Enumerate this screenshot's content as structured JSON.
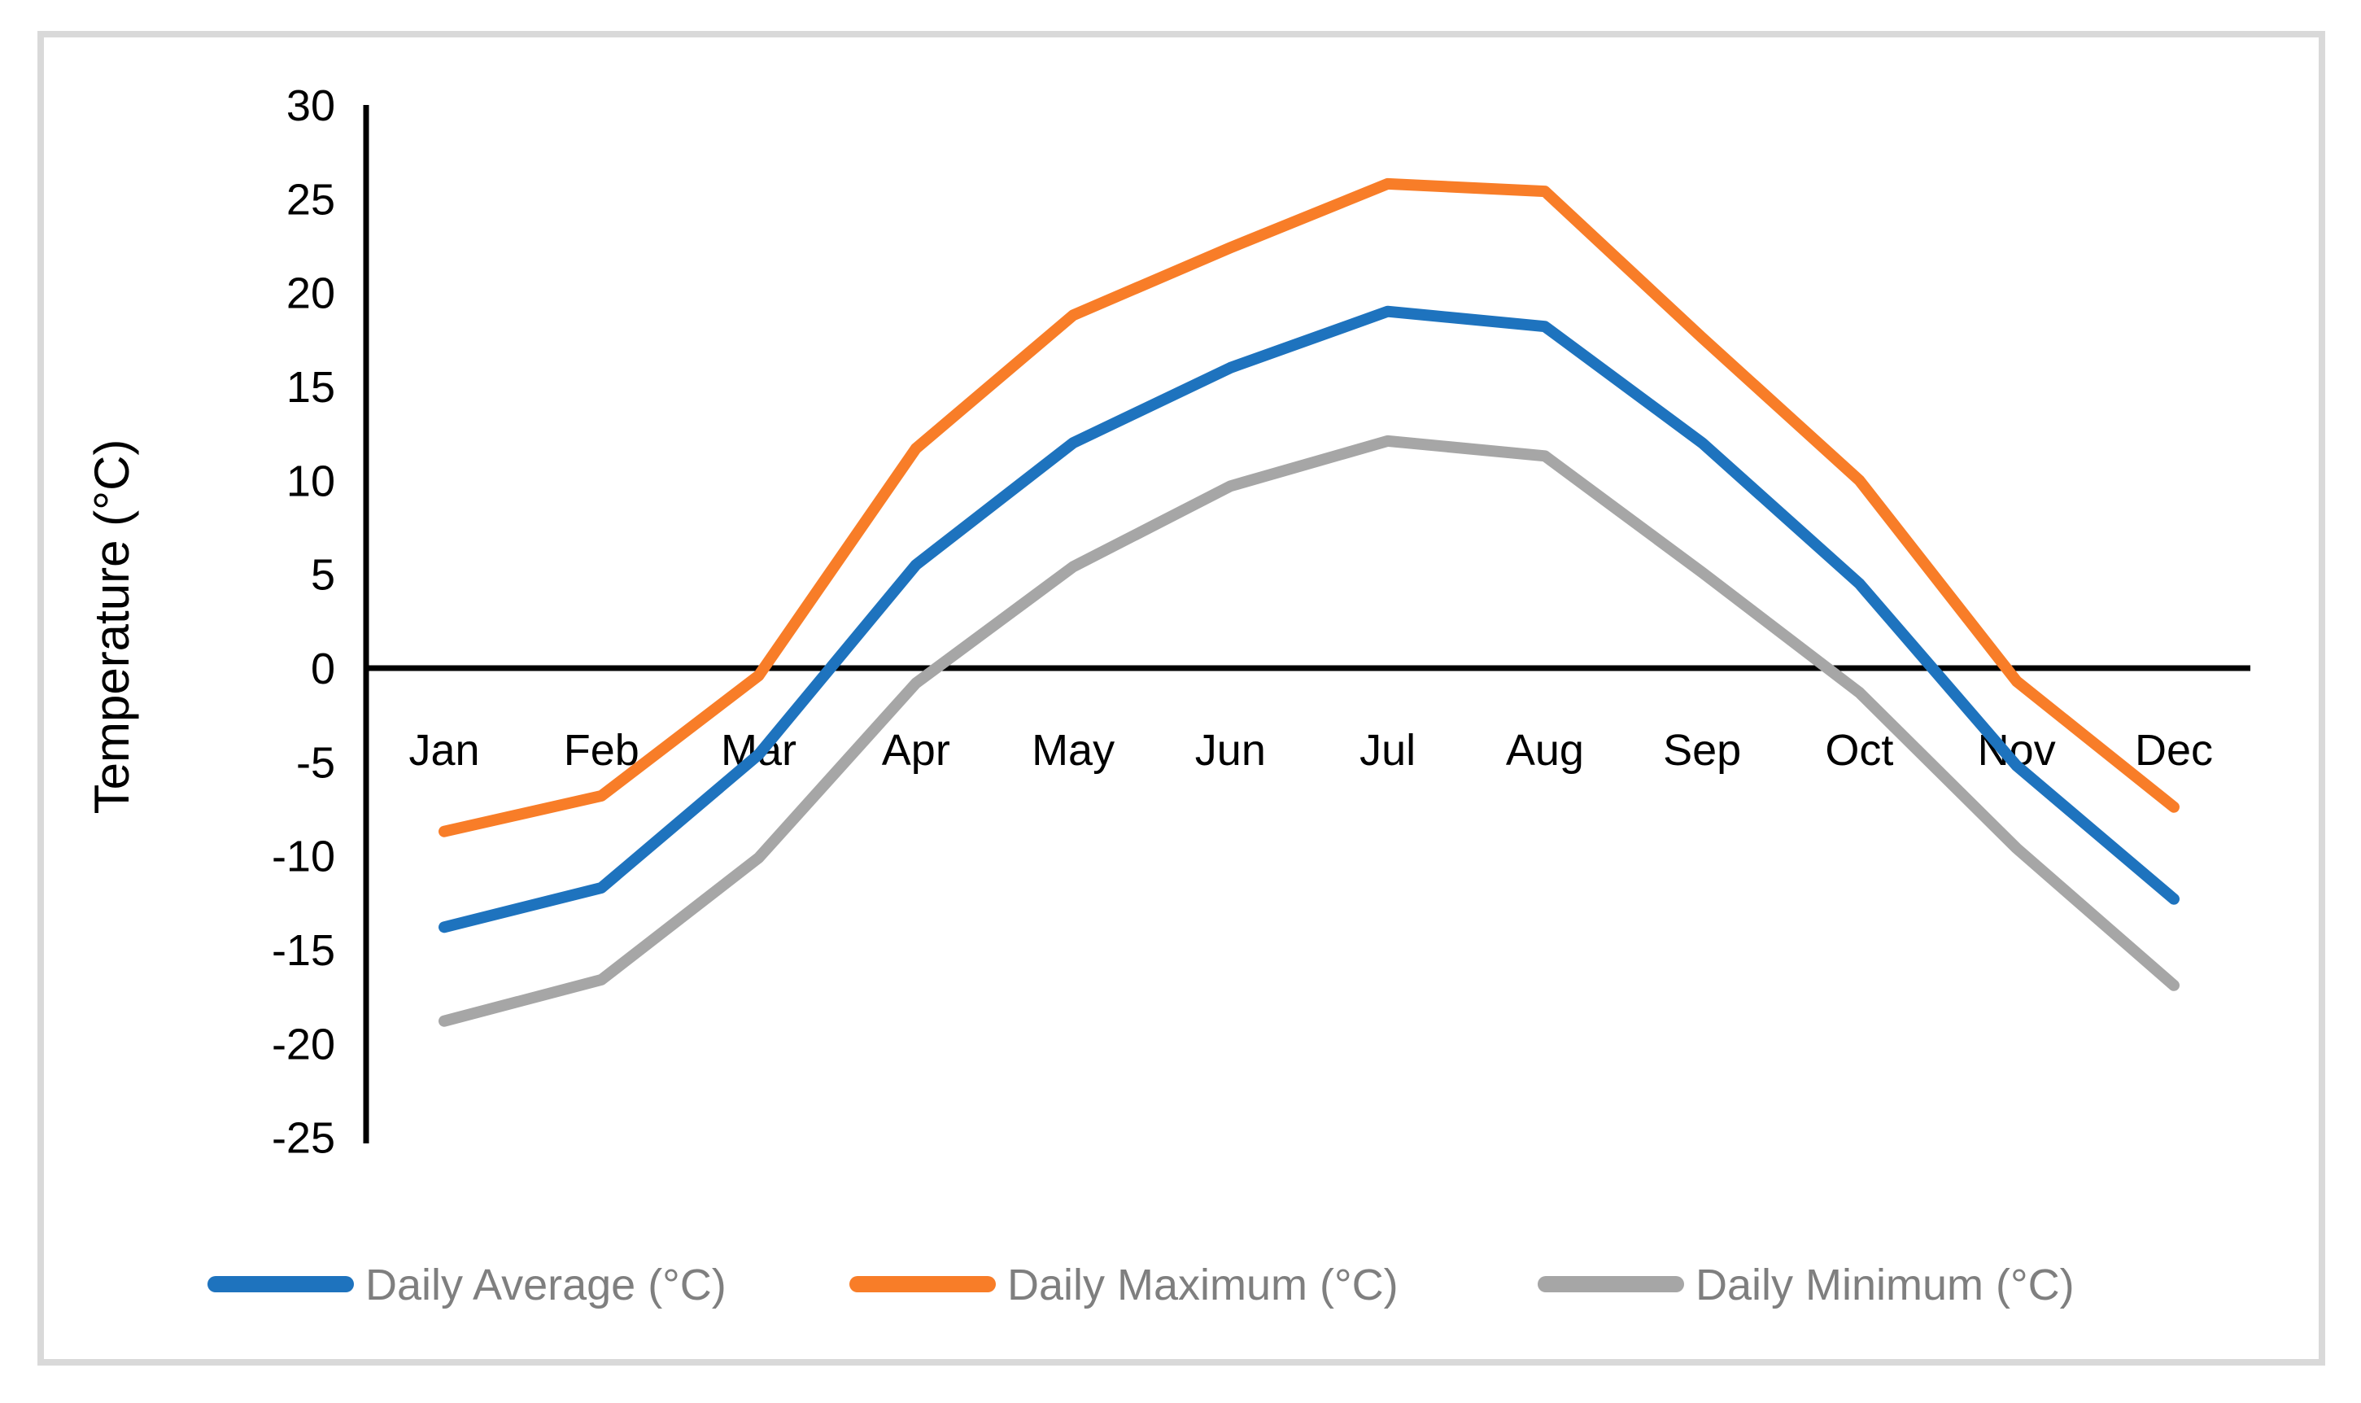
{
  "figure": {
    "background": "#FFFFFF",
    "border_color": "#D9D9D9",
    "axis_color": "#000000",
    "tick_label_color": "#000000",
    "month_label_color": "#000000",
    "legend_text_color": "#7F7F7F"
  },
  "chart_data": {
    "type": "line",
    "title": "",
    "xlabel": "",
    "ylabel": "Temperature (°C)",
    "ylim": [
      -25,
      30
    ],
    "ytick_step": 5,
    "yticks": [
      30,
      25,
      20,
      15,
      10,
      5,
      0,
      -5,
      -10,
      -15,
      -20,
      -25
    ],
    "grid": false,
    "legend_position": "bottom",
    "categories": [
      "Jan",
      "Feb",
      "Mar",
      "Apr",
      "May",
      "Jun",
      "Jul",
      "Aug",
      "Sep",
      "Oct",
      "Nov",
      "Dec"
    ],
    "series": [
      {
        "name": "Daily Average (°C)",
        "color": "#1E73BE",
        "values": [
          -13.8,
          -11.7,
          -4.6,
          5.5,
          12.0,
          16.0,
          19.0,
          18.2,
          12.0,
          4.5,
          -5.2,
          -12.3
        ]
      },
      {
        "name": "Daily Maximum (°C)",
        "color": "#F87D28",
        "values": [
          -8.7,
          -6.8,
          -0.4,
          11.7,
          18.8,
          22.4,
          25.8,
          25.4,
          17.6,
          10.0,
          -0.7,
          -7.4
        ]
      },
      {
        "name": "Daily Minimum (°C)",
        "color": "#A6A6A6",
        "values": [
          -18.8,
          -16.6,
          -10.1,
          -0.8,
          5.4,
          9.7,
          12.1,
          11.3,
          5.1,
          -1.3,
          -9.6,
          -16.9
        ]
      }
    ]
  }
}
